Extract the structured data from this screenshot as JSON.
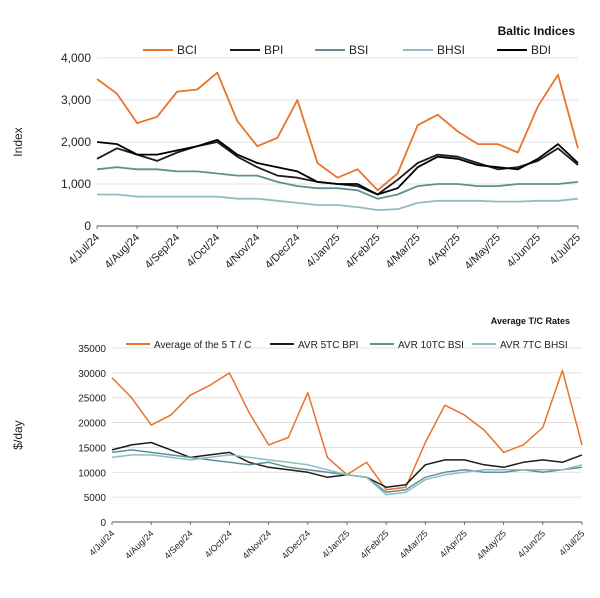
{
  "charts": [
    {
      "id": "baltic",
      "title": "Baltic Indices",
      "ylabel": "Index",
      "ylim": [
        0,
        4000
      ],
      "yticks": [
        "0",
        "1,000",
        "2,000",
        "3,000",
        "4,000"
      ],
      "ytick_values": [
        0,
        1000,
        2000,
        3000,
        4000
      ],
      "grid": true,
      "legend_position": "top",
      "xtick_labels": [
        "4/Jul/24",
        "4/Aug/24",
        "4/Sep/24",
        "4/Oct/24",
        "4/Nov/24",
        "4/Dec/24",
        "4/Jan/25",
        "4/Feb/25",
        "4/Mar/25",
        "4/Apr/25",
        "4/May/25",
        "4/Jun/25",
        "4/Jul/25"
      ]
    },
    {
      "id": "tc",
      "title": "Average T/C Rates",
      "ylabel": "$/day",
      "ylim": [
        0,
        35000
      ],
      "yticks": [
        "0",
        "5000",
        "10000",
        "15000",
        "20000",
        "25000",
        "30000",
        "35000"
      ],
      "ytick_values": [
        0,
        5000,
        10000,
        15000,
        20000,
        25000,
        30000,
        35000
      ],
      "grid": true,
      "legend_position": "top",
      "xtick_labels": [
        "4/Jul/24",
        "4/Aug/24",
        "4/Sep/24",
        "4/Oct/24",
        "4/Nov/24",
        "4/Dec/24",
        "4/Jan/25",
        "4/Feb/25",
        "4/Mar/25",
        "4/Apr/25",
        "4/May/25",
        "4/Jun/25",
        "4/Jul/25"
      ]
    }
  ],
  "chart_data": [
    {
      "type": "line",
      "title": "Baltic Indices",
      "ylabel": "Index",
      "ylim": [
        0,
        4000
      ],
      "x": [
        "4/Jul/24",
        "19/Jul/24",
        "4/Aug/24",
        "19/Aug/24",
        "4/Sep/24",
        "19/Sep/24",
        "4/Oct/24",
        "19/Oct/24",
        "4/Nov/24",
        "19/Nov/24",
        "4/Dec/24",
        "19/Dec/24",
        "4/Jan/25",
        "19/Jan/25",
        "4/Feb/25",
        "19/Feb/25",
        "4/Mar/25",
        "19/Mar/25",
        "4/Apr/25",
        "19/Apr/25",
        "4/May/25",
        "19/May/25",
        "4/Jun/25",
        "19/Jun/25",
        "4/Jul/25"
      ],
      "series": [
        {
          "name": "BCI",
          "color": "#e8732a",
          "values": [
            3500,
            3150,
            2450,
            2600,
            3200,
            3250,
            3650,
            2500,
            1900,
            2100,
            3000,
            1500,
            1150,
            1350,
            850,
            1250,
            2400,
            2650,
            2250,
            1950,
            1950,
            1750,
            2850,
            3600,
            1850
          ]
        },
        {
          "name": "BPI",
          "color": "#1c1c1c",
          "values": [
            1600,
            1850,
            1700,
            1550,
            1750,
            1900,
            2000,
            1650,
            1400,
            1200,
            1150,
            1050,
            1000,
            950,
            750,
            1100,
            1500,
            1700,
            1650,
            1500,
            1350,
            1400,
            1550,
            1850,
            1450
          ]
        },
        {
          "name": "BSI",
          "color": "#5f8f93",
          "values": [
            1350,
            1400,
            1350,
            1350,
            1300,
            1300,
            1250,
            1200,
            1200,
            1050,
            950,
            900,
            900,
            850,
            650,
            750,
            950,
            1000,
            1000,
            950,
            950,
            1000,
            1000,
            1000,
            1050
          ]
        },
        {
          "name": "BHSI",
          "color": "#8fbcc3",
          "values": [
            750,
            750,
            700,
            700,
            700,
            700,
            700,
            650,
            650,
            600,
            550,
            500,
            500,
            450,
            380,
            400,
            550,
            600,
            600,
            600,
            580,
            580,
            600,
            600,
            650
          ]
        },
        {
          "name": "BDI",
          "color": "#000000",
          "values": [
            2000,
            1950,
            1700,
            1700,
            1800,
            1900,
            2050,
            1700,
            1500,
            1400,
            1300,
            1050,
            1000,
            1000,
            750,
            900,
            1400,
            1650,
            1600,
            1450,
            1400,
            1350,
            1600,
            1950,
            1500
          ]
        }
      ]
    },
    {
      "type": "line",
      "title": "Average T/C Rates",
      "ylabel": "$/day",
      "ylim": [
        0,
        35000
      ],
      "x": [
        "4/Jul/24",
        "19/Jul/24",
        "4/Aug/24",
        "19/Aug/24",
        "4/Sep/24",
        "19/Sep/24",
        "4/Oct/24",
        "19/Oct/24",
        "4/Nov/24",
        "19/Nov/24",
        "4/Dec/24",
        "19/Dec/24",
        "4/Jan/25",
        "19/Jan/25",
        "4/Feb/25",
        "19/Feb/25",
        "4/Mar/25",
        "19/Mar/25",
        "4/Apr/25",
        "19/Apr/25",
        "4/May/25",
        "19/May/25",
        "4/Jun/25",
        "19/Jun/25",
        "4/Jul/25"
      ],
      "series": [
        {
          "name": "Average of the 5 T / C",
          "color": "#e8732a",
          "values": [
            29000,
            25000,
            19500,
            21500,
            25500,
            27500,
            30000,
            22000,
            15500,
            17000,
            26000,
            13000,
            9500,
            12000,
            6500,
            7000,
            16000,
            23500,
            21500,
            18500,
            14000,
            15500,
            19000,
            30500,
            15500
          ]
        },
        {
          "name": "AVR 5TC BPI",
          "color": "#1c1c1c",
          "values": [
            14500,
            15500,
            16000,
            14500,
            13000,
            13500,
            14000,
            12000,
            11000,
            10500,
            10000,
            9000,
            9500,
            9000,
            7000,
            7500,
            11500,
            12500,
            12500,
            11500,
            11000,
            12000,
            12500,
            12000,
            13500
          ]
        },
        {
          "name": "AVR 10TC BSI",
          "color": "#5f8f93",
          "values": [
            14000,
            14500,
            14000,
            13500,
            13000,
            12500,
            12000,
            11500,
            12000,
            11000,
            10500,
            10000,
            9500,
            9000,
            6000,
            6500,
            9000,
            10000,
            10500,
            10000,
            10000,
            10500,
            10000,
            10500,
            11000
          ]
        },
        {
          "name": "AVR 7TC BHSI",
          "color": "#8fbcc3",
          "values": [
            13000,
            13500,
            13500,
            13000,
            12500,
            13000,
            13500,
            13000,
            12500,
            12000,
            11500,
            10500,
            9500,
            9000,
            5500,
            6000,
            8500,
            9500,
            10000,
            10500,
            10500,
            10500,
            10500,
            10500,
            11500
          ]
        }
      ]
    }
  ]
}
